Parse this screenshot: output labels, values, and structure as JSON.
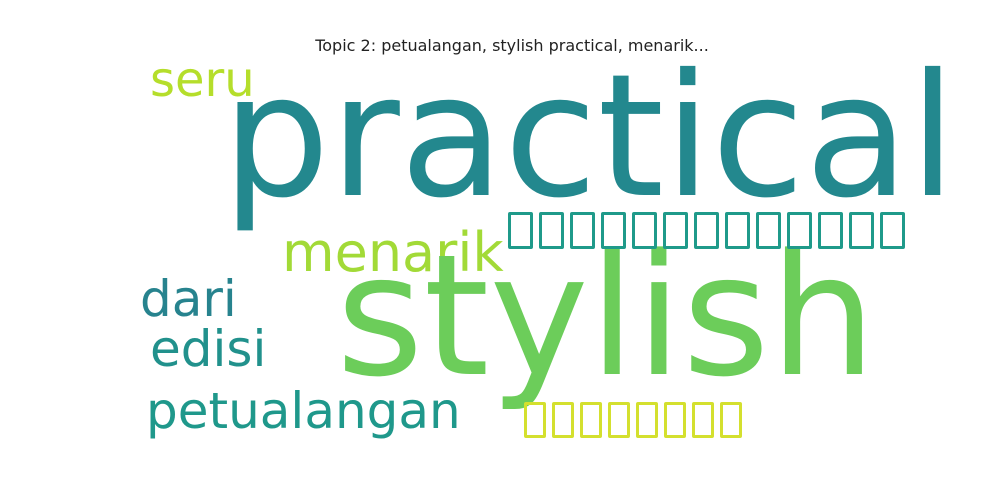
{
  "title": "Topic 2: petualangan, stylish practical, menarik...",
  "words": {
    "practical": {
      "text": "practical",
      "color": "#23888e"
    },
    "stylish": {
      "text": "stylish",
      "color": "#6ccd5a"
    },
    "seru": {
      "text": "seru",
      "color": "#b5de2b"
    },
    "menarik": {
      "text": "menarik",
      "color": "#a2da37"
    },
    "dari": {
      "text": "dari",
      "color": "#27838e"
    },
    "edisi": {
      "text": "edisi",
      "color": "#21918c"
    },
    "petualangan": {
      "text": "petualangan",
      "color": "#1f988b"
    },
    "boxes_top": {
      "glyph_count": 13,
      "color": "#1f9a8a"
    },
    "boxes_bottom": {
      "glyph_count": 8,
      "color": "#d4e02e"
    }
  }
}
